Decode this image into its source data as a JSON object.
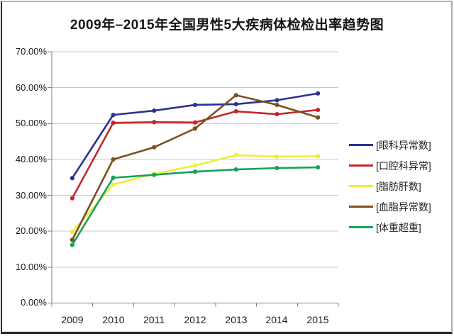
{
  "title": "2009年–2015年全国男性5大疾病体检检出率趋势图",
  "chart_data": {
    "type": "line",
    "title": "2009年–2015年全国男性5大疾病体检检出率趋势图",
    "categories": [
      "2009",
      "2010",
      "2011",
      "2012",
      "2013",
      "2014",
      "2015"
    ],
    "series": [
      {
        "name": "[眼科异常数]",
        "color": "#2e3192",
        "values": [
          34.8,
          52.4,
          53.6,
          55.2,
          55.4,
          56.5,
          58.4
        ]
      },
      {
        "name": "[口腔科异常]",
        "color": "#c5262c",
        "values": [
          29.2,
          50.2,
          50.4,
          50.3,
          53.4,
          52.6,
          53.8
        ]
      },
      {
        "name": "[脂肪肝数]",
        "color": "#eeed3b",
        "values": [
          19.8,
          33.0,
          36.0,
          38.3,
          41.2,
          40.8,
          40.9
        ]
      },
      {
        "name": "[血脂异常数]",
        "color": "#7d4f1f",
        "values": [
          17.6,
          40.0,
          43.4,
          48.6,
          57.9,
          55.2,
          51.7
        ]
      },
      {
        "name": "[体重超重]",
        "color": "#17a15e",
        "values": [
          16.2,
          34.9,
          35.7,
          36.6,
          37.2,
          37.6,
          37.8
        ]
      }
    ],
    "ylim": [
      0,
      70
    ],
    "ytick_labels": [
      "70.00%",
      "60.00%",
      "50.00%",
      "40.00%",
      "30.00%",
      "20.00%",
      "10.00%",
      "0.00%"
    ],
    "xlabel": "",
    "ylabel": "",
    "grid": true,
    "legend_position": "right",
    "gridline_color": "#c9c9c9",
    "axis_color": "#808080"
  }
}
